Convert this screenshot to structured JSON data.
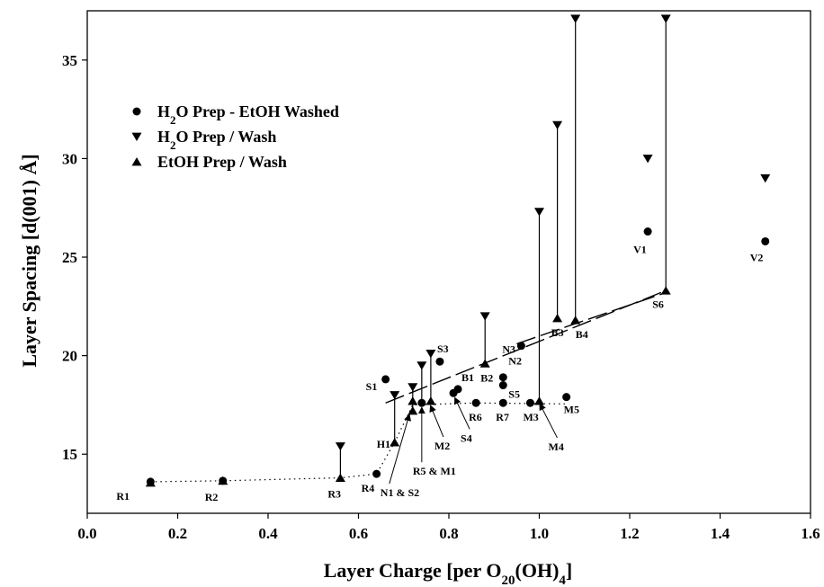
{
  "chart_data": {
    "type": "scatter",
    "xlabel_main": "Layer Charge [per O",
    "xlabel_sub1": "20",
    "xlabel_mid": "(OH)",
    "xlabel_sub2": "4",
    "xlabel_end": "]",
    "ylabel": "Layer Spacing [d(001) Å]",
    "xlim": [
      0.0,
      1.6
    ],
    "ylim": [
      12,
      37.5
    ],
    "x_ticks": [
      "0.0",
      "0.2",
      "0.4",
      "0.6",
      "0.8",
      "1.0",
      "1.2",
      "1.4",
      "1.6"
    ],
    "y_ticks": [
      "15",
      "20",
      "25",
      "30",
      "35"
    ],
    "legend": [
      {
        "parts": [
          "H",
          "2",
          "O Prep - EtOH Washed"
        ],
        "marker": "circle"
      },
      {
        "parts": [
          "H",
          "2",
          "O Prep / Wash"
        ],
        "marker": "triangle-down"
      },
      {
        "parts": [
          "EtOH Prep / Wash"
        ],
        "marker": "triangle-up"
      }
    ],
    "series": [
      {
        "name": "H2O Prep - EtOH Washed",
        "marker": "circle",
        "points": [
          [
            0.14,
            13.6
          ],
          [
            0.3,
            13.65
          ],
          [
            0.64,
            14.0
          ],
          [
            0.66,
            18.8
          ],
          [
            0.78,
            19.7
          ],
          [
            0.74,
            17.6
          ],
          [
            0.81,
            18.1
          ],
          [
            0.82,
            18.3
          ],
          [
            0.86,
            17.6
          ],
          [
            0.92,
            17.6
          ],
          [
            0.92,
            18.9
          ],
          [
            0.92,
            18.5
          ],
          [
            0.96,
            20.5
          ],
          [
            0.98,
            17.6
          ],
          [
            1.06,
            17.9
          ],
          [
            1.24,
            26.3
          ],
          [
            1.5,
            25.8
          ]
        ]
      },
      {
        "name": "H2O Prep / Wash",
        "marker": "triangle-down",
        "points": [
          [
            0.56,
            15.4
          ],
          [
            0.68,
            18.0
          ],
          [
            0.72,
            18.4
          ],
          [
            0.74,
            19.5
          ],
          [
            0.76,
            20.1
          ],
          [
            0.88,
            22.0
          ],
          [
            1.0,
            27.3
          ],
          [
            1.04,
            31.7
          ],
          [
            1.08,
            37.1
          ],
          [
            1.28,
            37.1
          ],
          [
            1.24,
            30.0
          ],
          [
            1.5,
            29.0
          ]
        ]
      },
      {
        "name": "EtOH Prep / Wash",
        "marker": "triangle-up",
        "points": [
          [
            0.14,
            13.55
          ],
          [
            0.3,
            13.65
          ],
          [
            0.56,
            13.8
          ],
          [
            0.68,
            15.6
          ],
          [
            0.72,
            17.2
          ],
          [
            0.72,
            17.7
          ],
          [
            0.76,
            17.7
          ],
          [
            0.88,
            19.6
          ],
          [
            1.0,
            17.7
          ],
          [
            1.04,
            21.9
          ],
          [
            1.08,
            21.8
          ],
          [
            1.28,
            23.3
          ]
        ]
      }
    ],
    "connectors": [
      [
        0.56,
        13.8,
        15.4
      ],
      [
        0.68,
        15.6,
        18.0
      ],
      [
        0.72,
        17.2,
        18.4
      ],
      [
        0.74,
        17.6,
        19.5
      ],
      [
        0.76,
        17.7,
        20.1
      ],
      [
        0.88,
        19.6,
        22.0
      ],
      [
        1.0,
        17.7,
        27.3
      ],
      [
        1.04,
        21.9,
        31.7
      ],
      [
        1.08,
        21.8,
        37.1
      ],
      [
        1.28,
        23.3,
        37.1
      ]
    ],
    "dotted_line": [
      [
        0.14,
        13.6
      ],
      [
        0.3,
        13.65
      ],
      [
        0.56,
        13.8
      ],
      [
        0.64,
        14.0
      ],
      [
        0.68,
        15.6
      ],
      [
        0.72,
        17.5
      ],
      [
        0.86,
        17.6
      ],
      [
        1.06,
        17.55
      ]
    ],
    "dashed_lines": [
      [
        [
          0.66,
          17.6
        ],
        [
          1.28,
          23.3
        ]
      ],
      [
        [
          0.95,
          20.6
        ],
        [
          1.28,
          23.2
        ]
      ]
    ],
    "annotations": [
      {
        "text": "R1",
        "x": 0.14,
        "y": 13.6,
        "dx": -38,
        "dy": 20
      },
      {
        "text": "R2",
        "x": 0.3,
        "y": 13.65,
        "dx": -20,
        "dy": 22
      },
      {
        "text": "R3",
        "x": 0.56,
        "y": 13.8,
        "dx": -14,
        "dy": 22
      },
      {
        "text": "R4",
        "x": 0.64,
        "y": 14.0,
        "dx": -17,
        "dy": 20
      },
      {
        "text": "S1",
        "x": 0.66,
        "y": 18.8,
        "dx": -22,
        "dy": 12
      },
      {
        "text": "S3",
        "x": 0.78,
        "y": 19.7,
        "dx": -3,
        "dy": -10
      },
      {
        "text": "B1",
        "x": 0.82,
        "y": 18.3,
        "dx": 4,
        "dy": -9
      },
      {
        "text": "B2",
        "x": 0.88,
        "y": 19.6,
        "dx": -5,
        "dy": 20
      },
      {
        "text": "N2",
        "x": 0.92,
        "y": 18.9,
        "dx": 6,
        "dy": -14
      },
      {
        "text": "S5",
        "x": 0.92,
        "y": 18.5,
        "dx": 6,
        "dy": 14
      },
      {
        "text": "N3",
        "x": 0.96,
        "y": 20.5,
        "dx": -21,
        "dy": 8
      },
      {
        "text": "B3",
        "x": 1.04,
        "y": 21.9,
        "dx": -7,
        "dy": 20
      },
      {
        "text": "B4",
        "x": 1.08,
        "y": 21.8,
        "dx": 0,
        "dy": 20
      },
      {
        "text": "S6",
        "x": 1.28,
        "y": 23.3,
        "dx": -15,
        "dy": 19
      },
      {
        "text": "V1",
        "x": 1.24,
        "y": 26.3,
        "dx": -16,
        "dy": 24
      },
      {
        "text": "V2",
        "x": 1.5,
        "y": 25.8,
        "dx": -17,
        "dy": 22
      },
      {
        "text": "R6",
        "x": 0.86,
        "y": 17.6,
        "dx": -8,
        "dy": 20
      },
      {
        "text": "R7",
        "x": 0.92,
        "y": 17.6,
        "dx": -8,
        "dy": 20
      },
      {
        "text": "M3",
        "x": 0.98,
        "y": 17.6,
        "dx": -8,
        "dy": 20
      },
      {
        "text": "M5",
        "x": 1.06,
        "y": 17.9,
        "dx": -3,
        "dy": 18
      },
      {
        "text": "H1",
        "x": 0.68,
        "y": 15.6,
        "dx": -20,
        "dy": 6
      },
      {
        "text": "N1 & S2",
        "x": 0.72,
        "y": 17.2,
        "dx": -36,
        "dy": 95,
        "ax": -4,
        "ay": 5
      },
      {
        "text": "R5 & M1",
        "x": 0.74,
        "y": 17.6,
        "dx": -10,
        "dy": 80,
        "ax": 0,
        "ay": 6
      },
      {
        "text": "M2",
        "x": 0.76,
        "y": 17.7,
        "dx": 4,
        "dy": 54,
        "ax": 0,
        "ay": 6
      },
      {
        "text": "S4",
        "x": 0.82,
        "y": 18.1,
        "dx": 3,
        "dy": 54,
        "ax": -3,
        "ay": 6
      },
      {
        "text": "M4",
        "x": 1.0,
        "y": 17.7,
        "dx": 10,
        "dy": 55,
        "ax": 1,
        "ay": 4
      }
    ]
  }
}
